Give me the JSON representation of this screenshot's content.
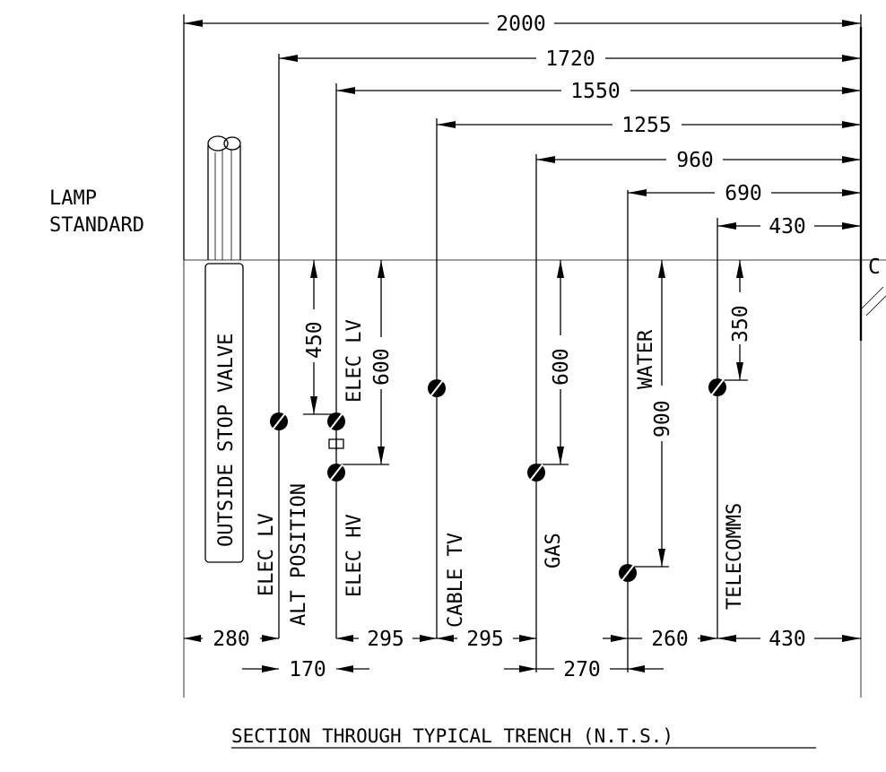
{
  "title": "SECTION THROUGH TYPICAL TRENCH (N.T.S.)",
  "lamp": {
    "line1": "LAMP",
    "line2": "STANDARD"
  },
  "centreline_mark": "C",
  "horizontal_dims": {
    "d2000": "2000",
    "d1720": "1720",
    "d1550": "1550",
    "d1255": "1255",
    "d960": "960",
    "d690": "690",
    "d430": "430"
  },
  "bottom_dims": {
    "b280": "280",
    "b295a": "295",
    "b295b": "295",
    "b260": "260",
    "b430": "430",
    "b170": "170",
    "b270": "270"
  },
  "vertical_dims": {
    "v450": "450",
    "v600a": "600",
    "v600b": "600",
    "v900": "900",
    "v350": "350"
  },
  "services": {
    "stop_valve": "OUTSIDE STOP VALVE",
    "elec_lv_alt_1": "ELEC LV",
    "elec_lv_alt_2": "ALT POSITION",
    "elec_lv": "ELEC LV",
    "elec_hv": "ELEC HV",
    "cable_tv": "CABLE TV",
    "gas": "GAS",
    "water": "WATER",
    "telecomms": "TELECOMMS"
  }
}
